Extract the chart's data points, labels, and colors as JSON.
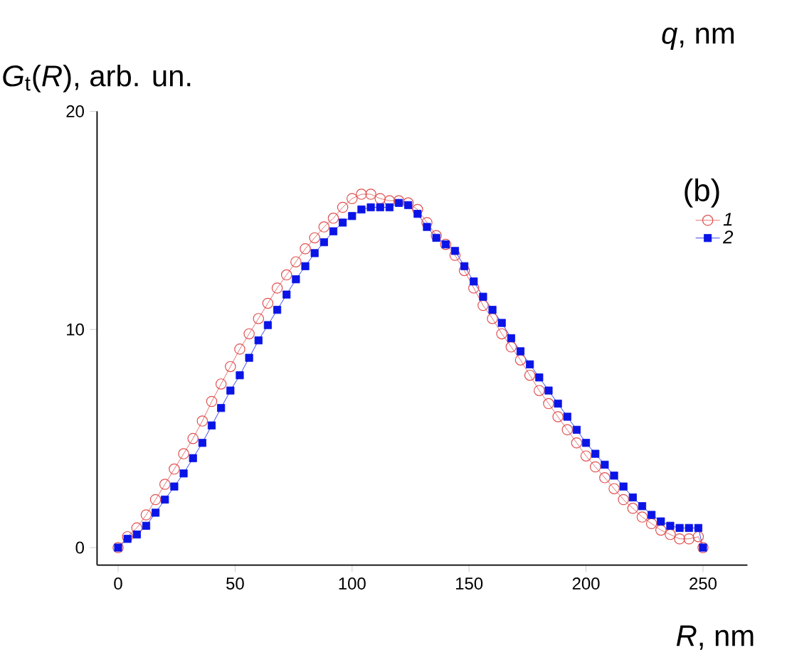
{
  "chart_data": {
    "type": "line",
    "xlabel": "*R*, nm",
    "ylabel": "*G*$_{t}$(*R*), arb. un.",
    "annotations": [
      "(b)",
      "*q*, nm"
    ],
    "xlim": [
      -9,
      269
    ],
    "ylim": [
      -0.8,
      20
    ],
    "xticks": [
      0,
      50,
      100,
      150,
      200,
      250
    ],
    "yticks": [
      0,
      10,
      20
    ],
    "legend": "top right",
    "x": [
      0,
      4,
      8,
      12,
      16,
      20,
      24,
      28,
      32,
      36,
      40,
      44,
      48,
      52,
      56,
      60,
      64,
      68,
      72,
      76,
      80,
      84,
      88,
      92,
      96,
      100,
      104,
      108,
      112,
      116,
      120,
      124,
      128,
      132,
      136,
      140,
      144,
      148,
      152,
      156,
      160,
      164,
      168,
      172,
      176,
      180,
      184,
      188,
      192,
      196,
      200,
      204,
      208,
      212,
      216,
      220,
      224,
      228,
      232,
      236,
      240,
      244,
      248,
      250
    ],
    "series": [
      {
        "name": "1",
        "color": "#e05050",
        "marker": "circle",
        "values": [
          0,
          0.5,
          0.9,
          1.5,
          2.2,
          2.9,
          3.6,
          4.3,
          5.0,
          5.8,
          6.7,
          7.5,
          8.3,
          9.1,
          9.8,
          10.5,
          11.2,
          11.9,
          12.5,
          13.1,
          13.7,
          14.2,
          14.7,
          15.1,
          15.6,
          16.0,
          16.2,
          16.2,
          16.0,
          15.9,
          15.9,
          15.8,
          15.5,
          14.9,
          14.3,
          13.9,
          13.4,
          12.7,
          11.9,
          11.1,
          10.5,
          9.8,
          9.2,
          8.6,
          7.9,
          7.2,
          6.6,
          6.0,
          5.4,
          4.8,
          4.2,
          3.7,
          3.2,
          2.7,
          2.2,
          1.8,
          1.4,
          1.1,
          0.8,
          0.6,
          0.4,
          0.4,
          0.5,
          0
        ]
      },
      {
        "name": "2",
        "color": "#0a14e6",
        "marker": "square",
        "values": [
          0,
          0.4,
          0.6,
          1.0,
          1.6,
          2.2,
          2.8,
          3.4,
          4.1,
          4.8,
          5.6,
          6.4,
          7.2,
          7.9,
          8.7,
          9.5,
          10.2,
          10.9,
          11.6,
          12.3,
          12.9,
          13.5,
          14.0,
          14.5,
          14.9,
          15.2,
          15.5,
          15.6,
          15.6,
          15.6,
          15.8,
          15.7,
          15.3,
          14.7,
          14.2,
          13.9,
          13.6,
          12.9,
          12.2,
          11.5,
          10.9,
          10.3,
          9.6,
          9.0,
          8.4,
          7.8,
          7.2,
          6.6,
          6.0,
          5.4,
          4.8,
          4.3,
          3.8,
          3.3,
          2.8,
          2.3,
          1.9,
          1.5,
          1.2,
          1.0,
          0.9,
          0.9,
          0.9,
          0
        ]
      }
    ]
  }
}
